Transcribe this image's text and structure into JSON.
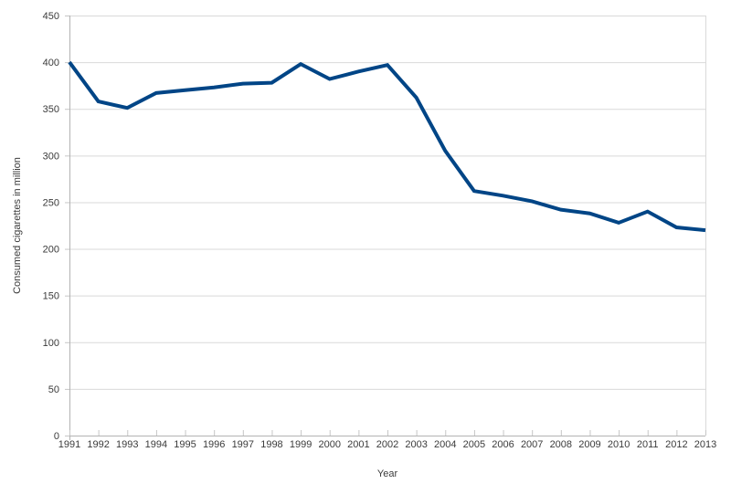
{
  "chart_data": {
    "type": "line",
    "title": "",
    "xlabel": "Year",
    "ylabel": "Consumed cigarettes in million",
    "x": [
      1991,
      1992,
      1993,
      1994,
      1995,
      1996,
      1997,
      1998,
      1999,
      2000,
      2001,
      2002,
      2003,
      2004,
      2005,
      2006,
      2007,
      2008,
      2009,
      2010,
      2011,
      2012,
      2013
    ],
    "values": [
      400,
      358,
      351,
      367,
      370,
      373,
      377,
      378,
      398,
      382,
      390,
      397,
      362,
      305,
      262,
      257,
      251,
      242,
      238,
      228,
      240,
      223,
      220
    ],
    "series_name": "Consumed cigarettes",
    "ylim": [
      0,
      450
    ],
    "yticks": [
      0,
      50,
      100,
      150,
      200,
      250,
      300,
      350,
      400,
      450
    ],
    "grid": true,
    "legend_position": "none",
    "line_color": "#004586",
    "grid_color": "#d9d9d9",
    "axis_color": "#b3b3b3",
    "tick_color": "#c6c6c6",
    "text_color": "#3b3b3b",
    "background_color": "#ffffff"
  }
}
